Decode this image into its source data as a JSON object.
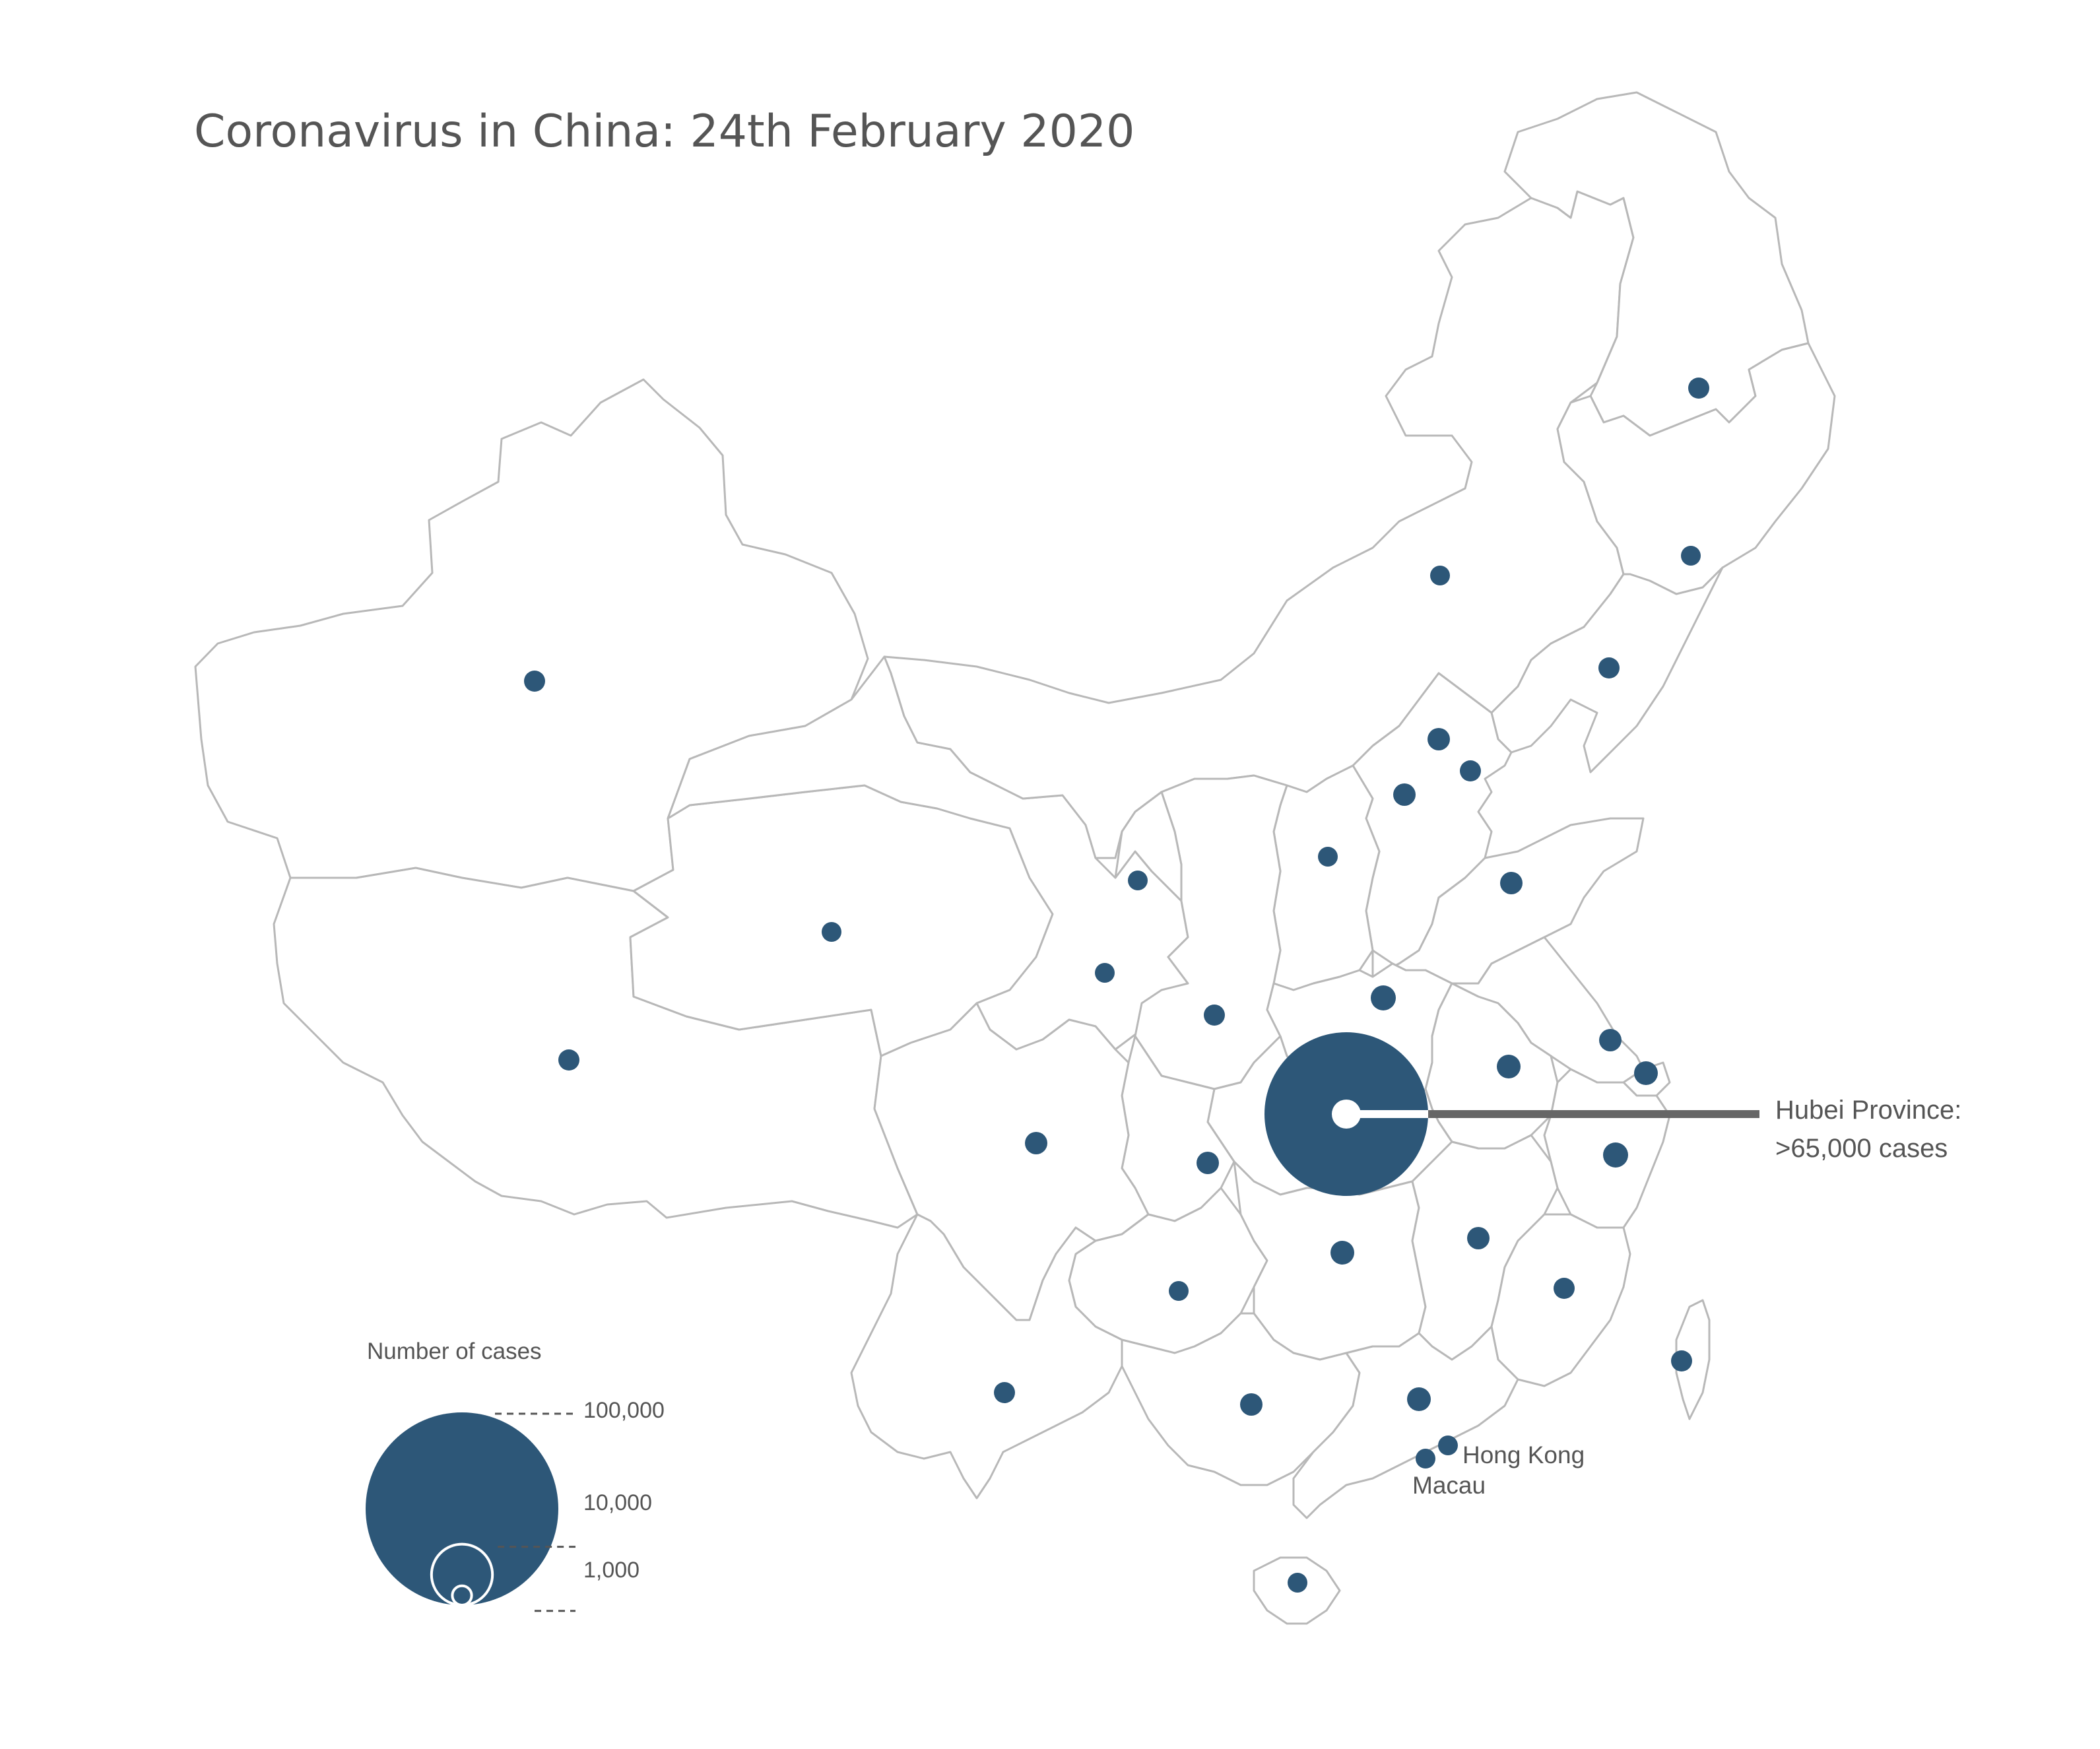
{
  "map": {
    "title": "Coronavirus in China: 24th February 2020",
    "subject": "China",
    "date": "24th February 2020",
    "bubble_color": "#2d5778",
    "outline_color": "#b8b8b8",
    "callout_color": "#666666",
    "text_color": "#555555"
  },
  "callout": {
    "region": "Hubei Province",
    "line1": "Hubei Province:",
    "line2": ">65,000 cases",
    "cases_min": 65000
  },
  "places": {
    "hong_kong": "Hong Kong",
    "macau": "Macau"
  },
  "legend": {
    "title": "Number of cases",
    "scale": [
      {
        "value": 100000,
        "label": "100,000"
      },
      {
        "value": 10000,
        "label": "10,000"
      },
      {
        "value": 1000,
        "label": "1,000"
      }
    ]
  },
  "markers": [
    {
      "id": "hubei",
      "kind": "major"
    },
    {
      "id": "heilongjiang",
      "kind": "minor"
    },
    {
      "id": "jilin",
      "kind": "minor"
    },
    {
      "id": "liaoning",
      "kind": "minor"
    },
    {
      "id": "inner-mongolia",
      "kind": "minor"
    },
    {
      "id": "beijing",
      "kind": "minor"
    },
    {
      "id": "tianjin",
      "kind": "minor"
    },
    {
      "id": "hebei",
      "kind": "minor"
    },
    {
      "id": "shanxi",
      "kind": "minor"
    },
    {
      "id": "shandong",
      "kind": "minor"
    },
    {
      "id": "henan",
      "kind": "minor"
    },
    {
      "id": "jiangsu",
      "kind": "minor"
    },
    {
      "id": "shanghai",
      "kind": "minor"
    },
    {
      "id": "anhui",
      "kind": "minor"
    },
    {
      "id": "zhejiang",
      "kind": "minor"
    },
    {
      "id": "jiangxi",
      "kind": "minor"
    },
    {
      "id": "fujian",
      "kind": "minor"
    },
    {
      "id": "hunan",
      "kind": "minor"
    },
    {
      "id": "guangdong",
      "kind": "minor"
    },
    {
      "id": "guangxi",
      "kind": "minor"
    },
    {
      "id": "hainan",
      "kind": "minor"
    },
    {
      "id": "chongqing",
      "kind": "minor"
    },
    {
      "id": "sichuan",
      "kind": "minor"
    },
    {
      "id": "guizhou",
      "kind": "minor"
    },
    {
      "id": "yunnan",
      "kind": "minor"
    },
    {
      "id": "shaanxi",
      "kind": "minor"
    },
    {
      "id": "ningxia",
      "kind": "minor"
    },
    {
      "id": "gansu",
      "kind": "minor"
    },
    {
      "id": "qinghai",
      "kind": "minor"
    },
    {
      "id": "xinjiang",
      "kind": "minor"
    },
    {
      "id": "tibet",
      "kind": "minor"
    },
    {
      "id": "taiwan",
      "kind": "minor"
    },
    {
      "id": "hong-kong",
      "kind": "minor"
    },
    {
      "id": "macau",
      "kind": "minor"
    }
  ]
}
